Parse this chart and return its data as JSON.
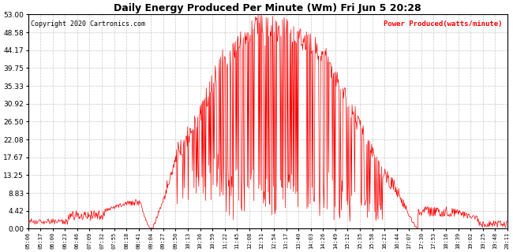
{
  "title": "Daily Energy Produced Per Minute (Wm) Fri Jun 5 20:28",
  "copyright": "Copyright 2020 Cartronics.com",
  "legend_label": "Power Produced(watts/minute)",
  "ylim": [
    0.0,
    53.0
  ],
  "yticks": [
    0.0,
    4.42,
    8.83,
    13.25,
    17.67,
    22.08,
    26.5,
    30.92,
    35.33,
    39.75,
    44.17,
    48.58,
    53.0
  ],
  "line_color": "red",
  "background_color": "#ffffff",
  "grid_color": "#b0b0b0",
  "title_color": "#000000",
  "copyright_color": "#000000",
  "legend_color": "red",
  "x_tick_labels": [
    "05:06",
    "05:37",
    "06:00",
    "06:23",
    "06:46",
    "07:09",
    "07:32",
    "07:55",
    "08:18",
    "08:41",
    "09:04",
    "09:27",
    "09:50",
    "10:13",
    "10:36",
    "10:59",
    "11:22",
    "11:45",
    "12:08",
    "12:31",
    "12:54",
    "13:17",
    "13:40",
    "14:03",
    "14:26",
    "14:49",
    "15:12",
    "15:35",
    "15:58",
    "16:21",
    "16:44",
    "17:07",
    "17:30",
    "17:53",
    "18:16",
    "18:39",
    "19:02",
    "19:25",
    "19:48",
    "20:11"
  ]
}
